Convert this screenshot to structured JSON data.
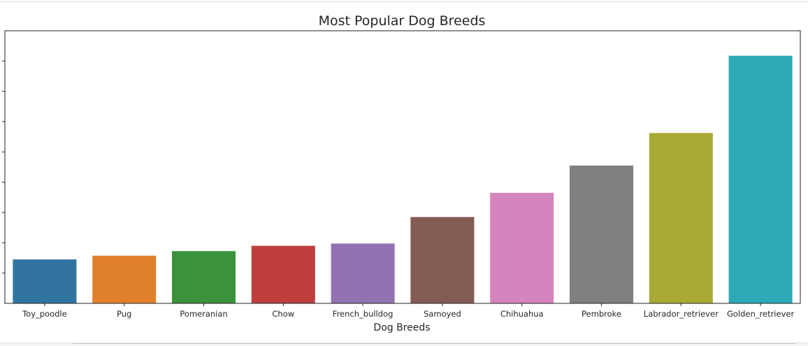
{
  "chart_data": {
    "type": "bar",
    "title": "Most Popular Dog Breeds",
    "xlabel": "Dog Breeds",
    "ylabel": "",
    "categories": [
      "Toy_poodle",
      "Pug",
      "Pomeranian",
      "Chow",
      "French_bulldog",
      "Samoyed",
      "Chihuahua",
      "Pembroke",
      "Labrador_retriever",
      "Golden_retriever"
    ],
    "values": [
      29,
      31.5,
      34.5,
      38,
      39.5,
      57,
      73,
      91,
      112.5,
      163.5
    ],
    "ylim": [
      0,
      180
    ],
    "grid": false,
    "colors": [
      "#3274a1",
      "#e1812c",
      "#3a923a",
      "#c03d3e",
      "#9372b2",
      "#845b53",
      "#d684bd",
      "#7f7f7f",
      "#a9aa35",
      "#2ea9b8"
    ]
  }
}
